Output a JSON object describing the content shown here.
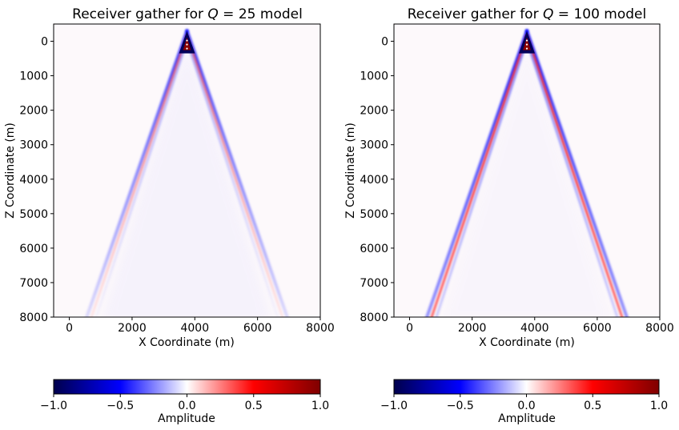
{
  "chart_data": [
    {
      "type": "heatmap",
      "title_prefix": "Receiver gather for ",
      "title_var": "Q",
      "title_eq": " = ",
      "title_value": "25",
      "title_suffix": " model",
      "xlabel": "X Coordinate (m)",
      "ylabel": "Z Coordinate (m)",
      "xlim": [
        -500,
        8000
      ],
      "ylim": [
        8000,
        -500
      ],
      "xticks": [
        0,
        2000,
        4000,
        6000,
        8000
      ],
      "yticks": [
        0,
        1000,
        2000,
        3000,
        4000,
        5000,
        6000,
        7000,
        8000
      ],
      "wavefront": {
        "apex": [
          3750,
          -300
        ],
        "left_end": [
          500,
          8000
        ],
        "right_end": [
          7000,
          8000
        ],
        "attenuation": "strong"
      },
      "colorbar": {
        "label": "Amplitude",
        "ticks": [
          "−1.0",
          "−0.5",
          "0.0",
          "0.5",
          "1.0"
        ],
        "range": [
          -1,
          1
        ],
        "colormap": "seismic"
      }
    },
    {
      "type": "heatmap",
      "title_prefix": "Receiver gather for ",
      "title_var": "Q",
      "title_eq": " = ",
      "title_value": "100",
      "title_suffix": " model",
      "xlabel": "X Coordinate (m)",
      "ylabel": "Z Coordinate (m)",
      "xlim": [
        -500,
        8000
      ],
      "ylim": [
        8000,
        -500
      ],
      "xticks": [
        0,
        2000,
        4000,
        6000,
        8000
      ],
      "yticks": [
        0,
        1000,
        2000,
        3000,
        4000,
        5000,
        6000,
        7000,
        8000
      ],
      "wavefront": {
        "apex": [
          3750,
          -300
        ],
        "left_end": [
          500,
          8000
        ],
        "right_end": [
          7000,
          8000
        ],
        "attenuation": "weak"
      },
      "colorbar": {
        "label": "Amplitude",
        "ticks": [
          "−1.0",
          "−0.5",
          "0.0",
          "0.5",
          "1.0"
        ],
        "range": [
          -1,
          1
        ],
        "colormap": "seismic"
      }
    }
  ],
  "colors": {
    "background": "#fdf9fb",
    "seismic": [
      "#00004c",
      "#0000ff",
      "#ffffff",
      "#ff0000",
      "#7f0000"
    ]
  }
}
